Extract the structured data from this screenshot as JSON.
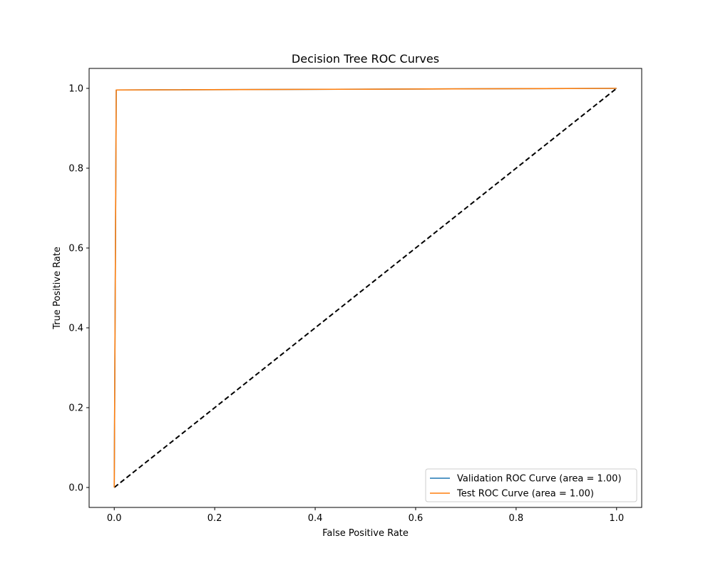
{
  "chart_data": {
    "type": "line",
    "title": "Decision Tree ROC Curves",
    "xlabel": "False Positive Rate",
    "ylabel": "True Positive Rate",
    "xlim": [
      -0.05,
      1.05
    ],
    "ylim": [
      -0.05,
      1.05
    ],
    "xticks": [
      0.0,
      0.2,
      0.4,
      0.6,
      0.8,
      1.0
    ],
    "xtick_labels": [
      "0.0",
      "0.2",
      "0.4",
      "0.6",
      "0.8",
      "1.0"
    ],
    "yticks": [
      0.0,
      0.2,
      0.4,
      0.6,
      0.8,
      1.0
    ],
    "ytick_labels": [
      "0.0",
      "0.2",
      "0.4",
      "0.6",
      "0.8",
      "1.0"
    ],
    "grid": false,
    "legend_position": "lower right",
    "series": [
      {
        "name": "Validation ROC Curve (area = 1.00)",
        "color": "#1f77b4",
        "x": [
          0.0,
          0.0,
          0.004,
          1.0
        ],
        "y": [
          0.0,
          0.0,
          0.996,
          1.0
        ]
      },
      {
        "name": "Test ROC Curve (area = 1.00)",
        "color": "#ff7f0e",
        "x": [
          0.0,
          0.0,
          0.004,
          1.0
        ],
        "y": [
          0.0,
          0.0,
          0.996,
          1.0
        ]
      }
    ],
    "reference_line": {
      "x": [
        0.0,
        1.0
      ],
      "y": [
        0.0,
        1.0
      ],
      "color": "#000000",
      "style": "dashed"
    }
  }
}
